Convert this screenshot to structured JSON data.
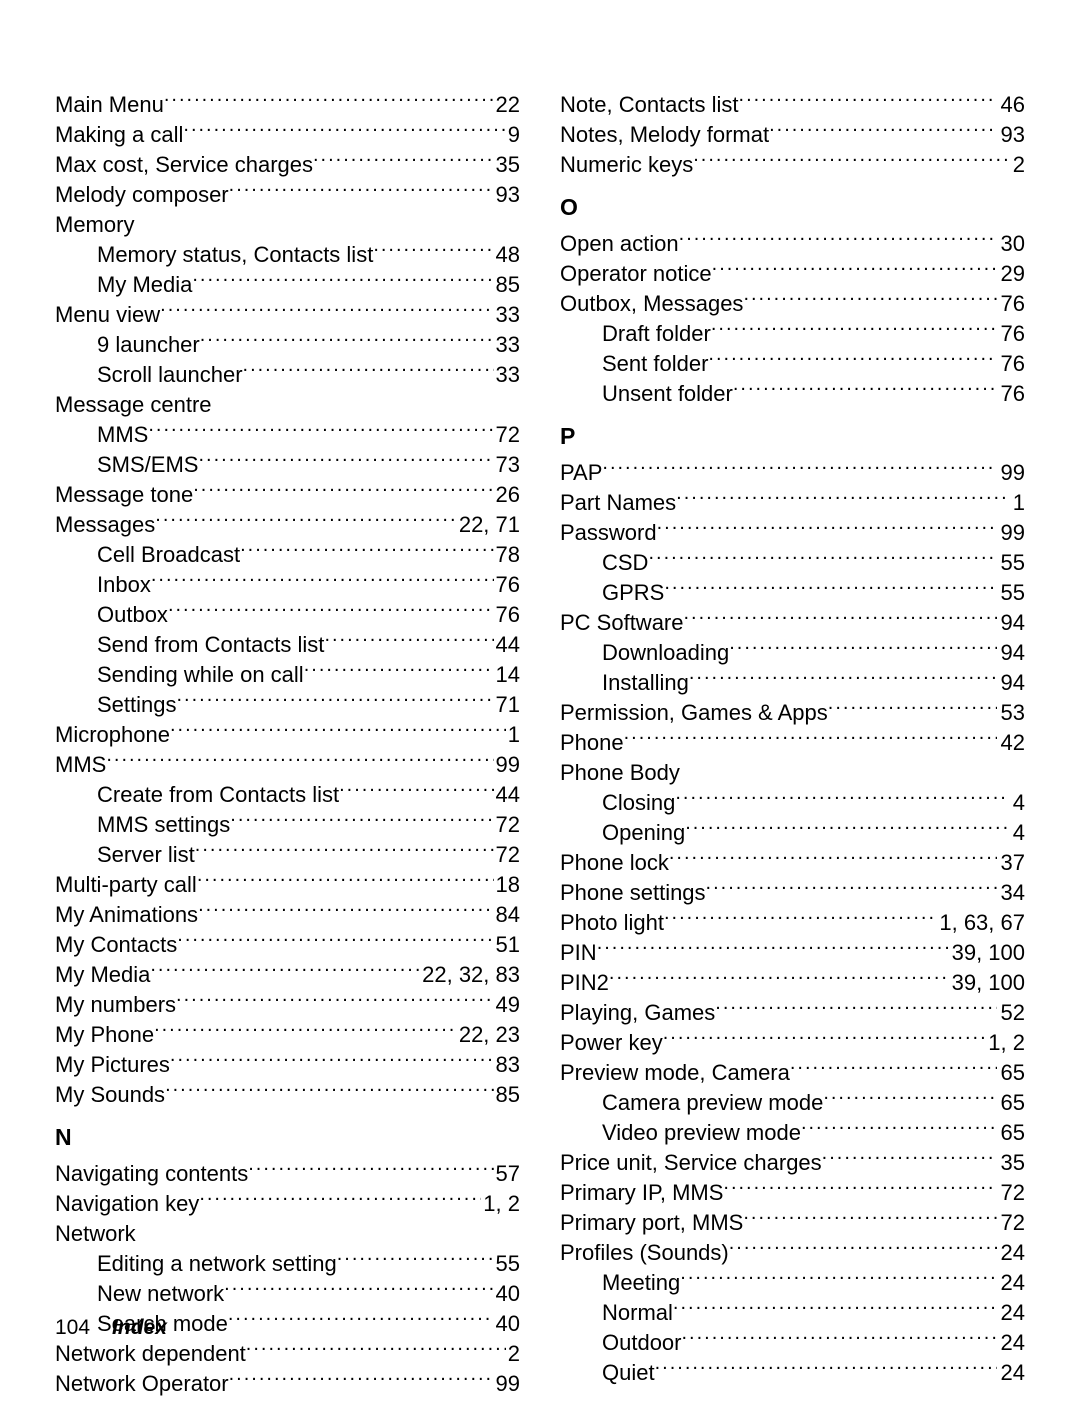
{
  "footer": {
    "page": "104",
    "title": "Index"
  },
  "left": [
    {
      "label": "Main Menu",
      "page": "22"
    },
    {
      "label": "Making a call",
      "page": "9"
    },
    {
      "label": "Max cost, Service charges",
      "page": "35"
    },
    {
      "label": "Melody composer",
      "page": "93"
    },
    {
      "label": "Memory",
      "no_page": true
    },
    {
      "label": "Memory status, Contacts list",
      "page": "48",
      "sub": true
    },
    {
      "label": "My Media",
      "page": "85",
      "sub": true
    },
    {
      "label": "Menu view",
      "page": "33"
    },
    {
      "label": "9 launcher",
      "page": "33",
      "sub": true
    },
    {
      "label": "Scroll launcher",
      "page": "33",
      "sub": true
    },
    {
      "label": "Message centre",
      "no_page": true
    },
    {
      "label": "MMS",
      "page": "72",
      "sub": true
    },
    {
      "label": "SMS/EMS",
      "page": "73",
      "sub": true
    },
    {
      "label": "Message tone",
      "page": "26"
    },
    {
      "label": "Messages",
      "page": "22, 71"
    },
    {
      "label": "Cell Broadcast",
      "page": "78",
      "sub": true
    },
    {
      "label": "Inbox",
      "page": "76",
      "sub": true
    },
    {
      "label": "Outbox",
      "page": "76",
      "sub": true
    },
    {
      "label": "Send from Contacts list",
      "page": "44",
      "sub": true
    },
    {
      "label": "Sending while on call",
      "page": "14",
      "sub": true
    },
    {
      "label": "Settings",
      "page": "71",
      "sub": true
    },
    {
      "label": "Microphone",
      "page": "1"
    },
    {
      "label": "MMS",
      "page": "99"
    },
    {
      "label": "Create from Contacts list",
      "page": "44",
      "sub": true
    },
    {
      "label": "MMS settings",
      "page": "72",
      "sub": true
    },
    {
      "label": "Server list",
      "page": "72",
      "sub": true
    },
    {
      "label": "Multi-party call",
      "page": "18"
    },
    {
      "label": "My Animations",
      "page": "84"
    },
    {
      "label": "My Contacts",
      "page": "51"
    },
    {
      "label": "My Media",
      "page": "22, 32, 83"
    },
    {
      "label": "My numbers",
      "page": "49"
    },
    {
      "label": "My Phone",
      "page": "22, 23"
    },
    {
      "label": "My Pictures",
      "page": "83"
    },
    {
      "label": "My Sounds",
      "page": "85"
    },
    {
      "heading": "N"
    },
    {
      "label": "Navigating contents",
      "page": "57"
    },
    {
      "label": "Navigation key",
      "page": "1, 2"
    },
    {
      "label": "Network",
      "no_page": true
    },
    {
      "label": "Editing a network setting",
      "page": "55",
      "sub": true
    },
    {
      "label": "New network",
      "page": "40",
      "sub": true
    },
    {
      "label": "Search mode",
      "page": "40",
      "sub": true
    },
    {
      "label": "Network dependent",
      "page": "2"
    },
    {
      "label": "Network Operator",
      "page": "99"
    }
  ],
  "right": [
    {
      "label": "Note, Contacts list",
      "page": "46"
    },
    {
      "label": "Notes, Melody format",
      "page": "93"
    },
    {
      "label": "Numeric keys",
      "page": "2"
    },
    {
      "heading": "O"
    },
    {
      "label": "Open action",
      "page": "30"
    },
    {
      "label": "Operator notice",
      "page": "29"
    },
    {
      "label": "Outbox, Messages",
      "page": "76"
    },
    {
      "label": "Draft folder",
      "page": "76",
      "sub": true
    },
    {
      "label": "Sent folder",
      "page": "76",
      "sub": true
    },
    {
      "label": "Unsent folder",
      "page": "76",
      "sub": true
    },
    {
      "heading": "P"
    },
    {
      "label": "PAP",
      "page": "99"
    },
    {
      "label": "Part Names",
      "page": "1"
    },
    {
      "label": "Password",
      "page": "99"
    },
    {
      "label": "CSD",
      "page": "55",
      "sub": true
    },
    {
      "label": "GPRS",
      "page": "55",
      "sub": true
    },
    {
      "label": "PC Software",
      "page": "94"
    },
    {
      "label": "Downloading",
      "page": "94",
      "sub": true
    },
    {
      "label": "Installing",
      "page": "94",
      "sub": true
    },
    {
      "label": "Permission, Games & Apps",
      "page": "53"
    },
    {
      "label": "Phone",
      "page": "42"
    },
    {
      "label": "Phone Body",
      "no_page": true
    },
    {
      "label": "Closing",
      "page": "4",
      "sub": true
    },
    {
      "label": "Opening",
      "page": "4",
      "sub": true
    },
    {
      "label": "Phone lock",
      "page": "37"
    },
    {
      "label": "Phone settings",
      "page": "34"
    },
    {
      "label": "Photo light",
      "page": "1, 63, 67"
    },
    {
      "label": "PIN",
      "page": "39, 100"
    },
    {
      "label": "PIN2",
      "page": "39, 100"
    },
    {
      "label": "Playing, Games",
      "page": "52"
    },
    {
      "label": "Power key",
      "page": "1, 2"
    },
    {
      "label": "Preview mode, Camera",
      "page": "65"
    },
    {
      "label": "Camera preview mode",
      "page": "65",
      "sub": true
    },
    {
      "label": "Video preview mode",
      "page": "65",
      "sub": true
    },
    {
      "label": "Price unit, Service charges",
      "page": "35"
    },
    {
      "label": "Primary IP, MMS",
      "page": "72"
    },
    {
      "label": "Primary port, MMS",
      "page": "72"
    },
    {
      "label": "Profiles (Sounds)",
      "page": "24"
    },
    {
      "label": "Meeting",
      "page": "24",
      "sub": true
    },
    {
      "label": "Normal",
      "page": "24",
      "sub": true
    },
    {
      "label": "Outdoor",
      "page": "24",
      "sub": true
    },
    {
      "label": "Quiet",
      "page": "24",
      "sub": true
    }
  ]
}
